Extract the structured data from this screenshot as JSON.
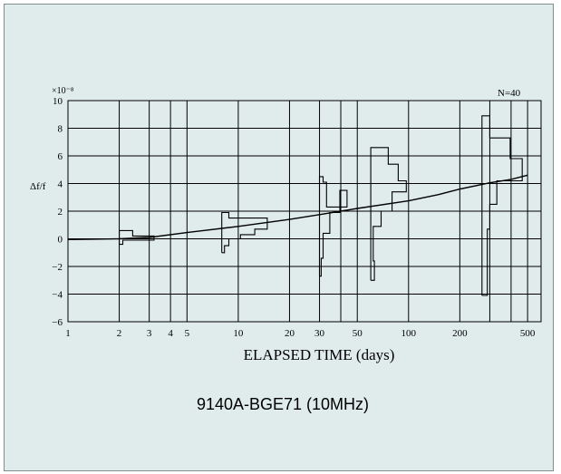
{
  "chart_data": {
    "type": "line",
    "xscale": "log",
    "xlim": [
      1,
      600
    ],
    "ylim": [
      -6,
      10
    ],
    "xticks": [
      1,
      2,
      3,
      4,
      5,
      10,
      20,
      30,
      50,
      100,
      200,
      500
    ],
    "xtick_labels": [
      "1",
      "2",
      "3",
      "4",
      "5",
      "10",
      "20",
      "30",
      "50",
      "100",
      "200",
      "500"
    ],
    "xgrid": [
      2,
      3,
      4,
      5,
      10,
      20,
      30,
      40,
      50,
      100,
      200,
      300,
      400,
      500
    ],
    "yticks": [
      -6,
      -4,
      -2,
      0,
      2,
      4,
      6,
      8,
      10
    ],
    "ytick_labels": [
      "−6",
      "−4",
      "−2",
      "0",
      "2",
      "4",
      "6",
      "8",
      "10"
    ],
    "grid": true,
    "xlabel": "ELAPSED TIME (days)",
    "ylabel": "Δf/f",
    "y_multiplier": "×10⁻⁸",
    "annotation": "N=40",
    "curve": {
      "x": [
        1,
        2,
        3,
        5,
        10,
        20,
        30,
        50,
        100,
        150,
        200,
        300,
        400,
        500
      ],
      "y": [
        -0.05,
        0.0,
        0.1,
        0.45,
        0.9,
        1.4,
        1.75,
        2.2,
        2.75,
        3.2,
        3.6,
        4.05,
        4.3,
        4.6
      ]
    },
    "histograms": [
      {
        "at": 2,
        "outline": [
          [
            2.0,
            -0.4
          ],
          [
            2.1,
            -0.4
          ],
          [
            2.1,
            -0.1
          ],
          [
            3.2,
            -0.1
          ],
          [
            3.2,
            0.2
          ],
          [
            2.4,
            0.2
          ],
          [
            2.4,
            0.6
          ],
          [
            2.0,
            0.6
          ],
          [
            2.0,
            -0.4
          ]
        ]
      },
      {
        "at": 8,
        "outline": [
          [
            8.0,
            -1.0
          ],
          [
            8.3,
            -1.0
          ],
          [
            8.3,
            -0.5
          ],
          [
            8.8,
            -0.5
          ],
          [
            8.8,
            0.0
          ],
          [
            10.3,
            0.0
          ],
          [
            10.3,
            0.3
          ],
          [
            12.5,
            0.3
          ],
          [
            12.5,
            0.7
          ],
          [
            14.8,
            0.7
          ],
          [
            14.8,
            1.5
          ],
          [
            8.8,
            1.5
          ],
          [
            8.8,
            1.9
          ],
          [
            8.0,
            1.9
          ],
          [
            8.0,
            -1.0
          ]
        ]
      },
      {
        "at": 30,
        "outline": [
          [
            30.0,
            -2.7
          ],
          [
            30.7,
            -2.7
          ],
          [
            30.7,
            -1.4
          ],
          [
            31.5,
            -1.4
          ],
          [
            31.5,
            0.4
          ],
          [
            34.5,
            0.4
          ],
          [
            34.5,
            1.9
          ],
          [
            39.5,
            1.9
          ],
          [
            39.5,
            3.5
          ],
          [
            43.5,
            3.5
          ],
          [
            43.5,
            2.3
          ],
          [
            33.0,
            2.3
          ],
          [
            33.0,
            4.1
          ],
          [
            31.5,
            4.1
          ],
          [
            31.5,
            4.5
          ],
          [
            30.0,
            4.5
          ],
          [
            30.0,
            -2.7
          ]
        ]
      },
      {
        "at": 60,
        "outline": [
          [
            60.0,
            -3.0
          ],
          [
            63.0,
            -3.0
          ],
          [
            63.0,
            -1.6
          ],
          [
            62.0,
            -1.6
          ],
          [
            62.0,
            0.9
          ],
          [
            69.0,
            0.9
          ],
          [
            69.0,
            2.0
          ],
          [
            80.0,
            2.0
          ],
          [
            80.0,
            3.4
          ],
          [
            97.0,
            3.4
          ],
          [
            97.0,
            4.2
          ],
          [
            87.0,
            4.2
          ],
          [
            87.0,
            5.4
          ],
          [
            76.0,
            5.4
          ],
          [
            76.0,
            6.6
          ],
          [
            60.0,
            6.6
          ],
          [
            60.0,
            -3.0
          ]
        ]
      },
      {
        "at": 280,
        "outline": [
          [
            270.0,
            -4.1
          ],
          [
            290.0,
            -4.1
          ],
          [
            290.0,
            0.7
          ],
          [
            300.0,
            0.7
          ],
          [
            300.0,
            2.5
          ],
          [
            330.0,
            2.5
          ],
          [
            330.0,
            4.2
          ],
          [
            465.0,
            4.2
          ],
          [
            465.0,
            5.8
          ],
          [
            395.0,
            5.8
          ],
          [
            395.0,
            7.3
          ],
          [
            300.0,
            7.3
          ],
          [
            300.0,
            8.9
          ],
          [
            270.0,
            8.9
          ],
          [
            270.0,
            -4.1
          ]
        ]
      }
    ]
  },
  "caption": "9140A-BGE71 (10MHz)",
  "colors": {
    "background": "#dfeceb",
    "line": "#000000",
    "frame": "#7f8f8e"
  }
}
